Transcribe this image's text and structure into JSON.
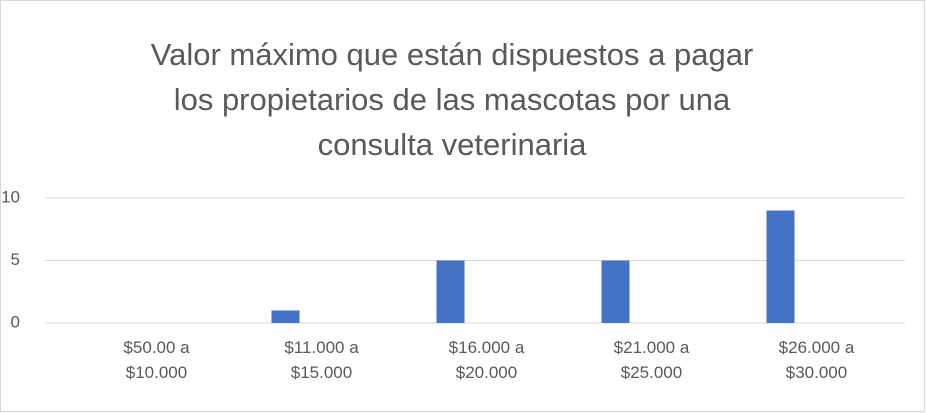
{
  "chart_data": {
    "type": "bar",
    "title": "Valor máximo que están dispuestos a pagar los propietarios de las mascotas por una consulta veterinaria",
    "categories": [
      "$50.00 a $10.000",
      "$11.000 a $15.000",
      "$16.000 a $20.000",
      "$21.000 a $25.000",
      "$26.000 a $30.000"
    ],
    "values": [
      0,
      1,
      5,
      5,
      9
    ],
    "color": "#4472c4",
    "ylim": [
      0,
      10
    ],
    "yticks": [
      0,
      5,
      10
    ],
    "grid": true
  }
}
